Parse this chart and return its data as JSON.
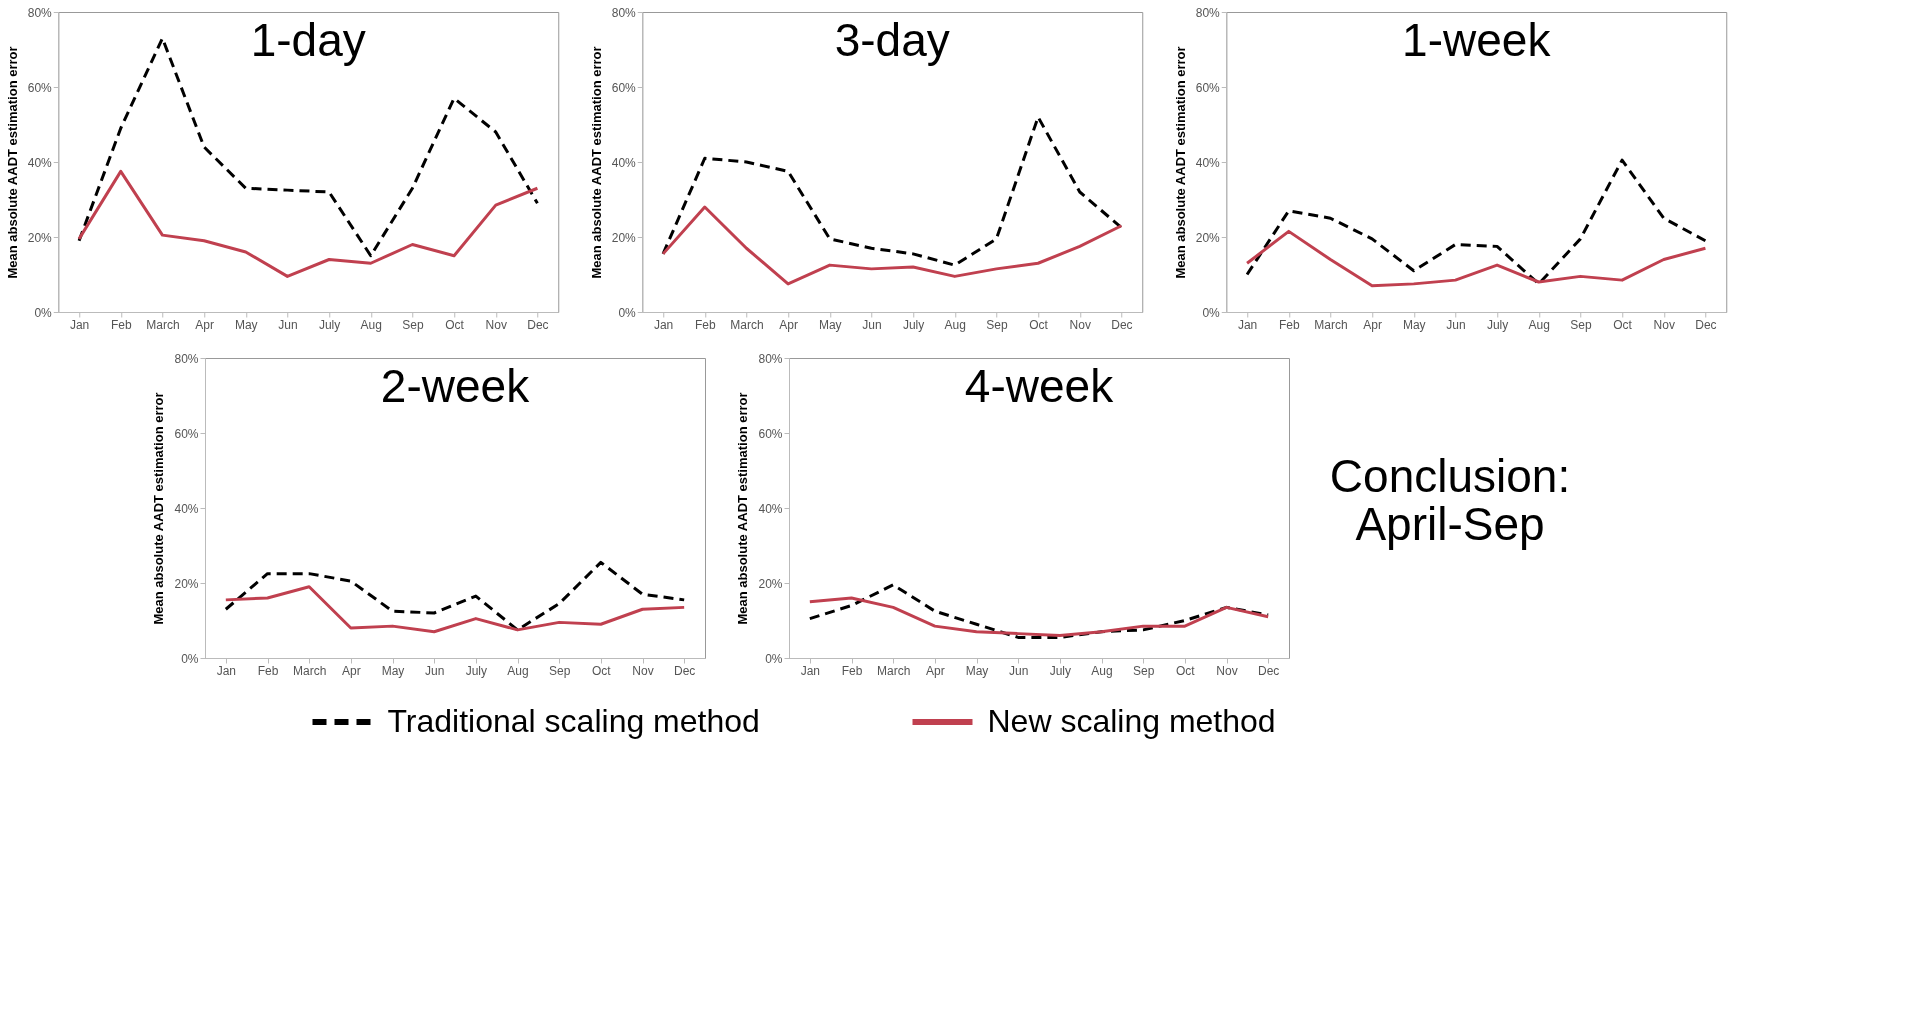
{
  "chart_data": [
    {
      "type": "line",
      "title": "1-day",
      "ylabel": "Mean absolute AADT estimation error",
      "categories": [
        "Jan",
        "Feb",
        "March",
        "Apr",
        "May",
        "Jun",
        "July",
        "Aug",
        "Sep",
        "Oct",
        "Nov",
        "Dec"
      ],
      "ylim": [
        0,
        80
      ],
      "yticks": [
        {
          "value": 0,
          "label": "0%"
        },
        {
          "value": 20,
          "label": "20%"
        },
        {
          "value": 40,
          "label": "40%"
        },
        {
          "value": 60,
          "label": "60%"
        },
        {
          "value": 80,
          "label": "80%"
        }
      ],
      "grid": false,
      "legend": "bottom",
      "series": [
        {
          "name": "Traditional scaling method",
          "color": "#000000",
          "line_style": "dashed",
          "values": [
            19,
            49,
            73,
            44,
            33,
            32.5,
            32,
            15,
            33,
            57,
            48,
            29
          ]
        },
        {
          "name": "New scaling method",
          "color": "#c0404f",
          "line_style": "solid",
          "values": [
            19.5,
            37.5,
            20.5,
            19,
            16,
            9.5,
            14,
            13,
            18,
            15,
            28.5,
            33
          ]
        }
      ]
    },
    {
      "type": "line",
      "title": "3-day",
      "ylabel": "Mean absolute AADT estimation error",
      "categories": [
        "Jan",
        "Feb",
        "March",
        "Apr",
        "May",
        "Jun",
        "July",
        "Aug",
        "Sep",
        "Oct",
        "Nov",
        "Dec"
      ],
      "ylim": [
        0,
        80
      ],
      "yticks": [
        {
          "value": 0,
          "label": "0%"
        },
        {
          "value": 20,
          "label": "20%"
        },
        {
          "value": 40,
          "label": "40%"
        },
        {
          "value": 60,
          "label": "60%"
        },
        {
          "value": 80,
          "label": "80%"
        }
      ],
      "grid": false,
      "series": [
        {
          "color": "#000000",
          "line_style": "dashed",
          "values": [
            15.5,
            41,
            40,
            37.5,
            19.5,
            17,
            15.5,
            12.5,
            19.5,
            52,
            32,
            22.5
          ]
        },
        {
          "color": "#c0404f",
          "line_style": "solid",
          "values": [
            15.5,
            28,
            17,
            7.5,
            12.5,
            11.5,
            12,
            9.5,
            11.5,
            13,
            17.5,
            23
          ]
        }
      ]
    },
    {
      "type": "line",
      "title": "1-week",
      "ylabel": "Mean absolute AADT estimation error",
      "categories": [
        "Jan",
        "Feb",
        "March",
        "Apr",
        "May",
        "Jun",
        "July",
        "Aug",
        "Sep",
        "Oct",
        "Nov",
        "Dec"
      ],
      "ylim": [
        0,
        80
      ],
      "yticks": [
        {
          "value": 0,
          "label": "0%"
        },
        {
          "value": 20,
          "label": "20%"
        },
        {
          "value": 40,
          "label": "40%"
        },
        {
          "value": 60,
          "label": "60%"
        },
        {
          "value": 80,
          "label": "80%"
        }
      ],
      "grid": false,
      "series": [
        {
          "color": "#000000",
          "line_style": "dashed",
          "values": [
            10,
            27,
            25,
            19.5,
            11,
            18,
            17.5,
            7.5,
            19.5,
            40.5,
            25,
            19
          ]
        },
        {
          "color": "#c0404f",
          "line_style": "solid",
          "values": [
            13,
            21.5,
            14,
            7,
            7.5,
            8.5,
            12.5,
            8,
            9.5,
            8.5,
            14,
            17
          ]
        }
      ]
    },
    {
      "type": "line",
      "title": "2-week",
      "ylabel": "Mean absolute AADT estimation error",
      "categories": [
        "Jan",
        "Feb",
        "March",
        "Apr",
        "May",
        "Jun",
        "July",
        "Aug",
        "Sep",
        "Oct",
        "Nov",
        "Dec"
      ],
      "ylim": [
        0,
        80
      ],
      "yticks": [
        {
          "value": 0,
          "label": "0%"
        },
        {
          "value": 20,
          "label": "20%"
        },
        {
          "value": 40,
          "label": "40%"
        },
        {
          "value": 60,
          "label": "60%"
        },
        {
          "value": 80,
          "label": "80%"
        }
      ],
      "grid": false,
      "series": [
        {
          "color": "#000000",
          "line_style": "dashed",
          "values": [
            13,
            22.5,
            22.5,
            20.5,
            12.5,
            12,
            16.5,
            7.5,
            14.5,
            25.5,
            17,
            15.5
          ]
        },
        {
          "color": "#c0404f",
          "line_style": "solid",
          "values": [
            15.5,
            16,
            19,
            8,
            8.5,
            7,
            10.5,
            7.5,
            9.5,
            9,
            13,
            13.5
          ]
        }
      ]
    },
    {
      "type": "line",
      "title": "4-week",
      "ylabel": "Mean absolute AADT estimation error",
      "categories": [
        "Jan",
        "Feb",
        "March",
        "Apr",
        "May",
        "Jun",
        "July",
        "Aug",
        "Sep",
        "Oct",
        "Nov",
        "Dec"
      ],
      "ylim": [
        0,
        80
      ],
      "yticks": [
        {
          "value": 0,
          "label": "0%"
        },
        {
          "value": 20,
          "label": "20%"
        },
        {
          "value": 40,
          "label": "40%"
        },
        {
          "value": 60,
          "label": "60%"
        },
        {
          "value": 80,
          "label": "80%"
        }
      ],
      "grid": false,
      "annotations": [
        "Conclusion:\nApril-Sep"
      ],
      "series": [
        {
          "color": "#000000",
          "line_style": "dashed",
          "values": [
            10.5,
            14,
            19.5,
            12.5,
            9,
            5.5,
            5.5,
            7,
            7.5,
            10,
            13.5,
            11.5
          ]
        },
        {
          "color": "#c0404f",
          "line_style": "solid",
          "values": [
            15,
            16,
            13.5,
            8.5,
            7,
            6.5,
            6,
            7,
            8.5,
            8.5,
            13.5,
            11
          ]
        }
      ]
    }
  ]
}
